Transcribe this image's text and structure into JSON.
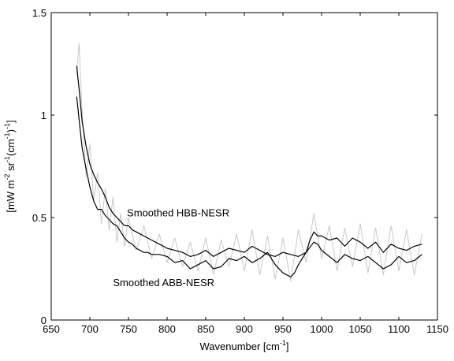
{
  "chart_data": {
    "type": "line",
    "title": "",
    "xlabel": {
      "text": "Wavenumber [cm",
      "sup": "-1",
      "suffix": "]"
    },
    "ylabel": {
      "parts": [
        "[mW m",
        "-2",
        " sr",
        "-1",
        "(cm",
        "-1",
        ")",
        "-1",
        "]"
      ]
    },
    "xlim": [
      650,
      1150
    ],
    "ylim": [
      0,
      1.5
    ],
    "x_ticks": [
      650,
      700,
      750,
      800,
      850,
      900,
      950,
      1000,
      1050,
      1100,
      1150
    ],
    "x_tick_labels": [
      "650",
      "700",
      "750",
      "800",
      "850",
      "900",
      "950",
      "1000",
      "1050",
      "1100",
      "1150"
    ],
    "y_ticks": [
      0,
      0.5,
      1,
      1.5
    ],
    "y_tick_labels": [
      "0",
      "0.5",
      "1",
      "1.5"
    ],
    "grid": false,
    "series": [
      {
        "name": "Smoothed HBB-NESR",
        "color": "#000000",
        "x": [
          683,
          686,
          690,
          695,
          700,
          705,
          710,
          715,
          720,
          725,
          730,
          735,
          740,
          745,
          750,
          755,
          760,
          765,
          770,
          775,
          780,
          785,
          790,
          795,
          800,
          810,
          820,
          830,
          840,
          850,
          860,
          870,
          880,
          890,
          900,
          910,
          920,
          930,
          940,
          950,
          960,
          970,
          980,
          985,
          990,
          995,
          1000,
          1010,
          1020,
          1030,
          1040,
          1050,
          1060,
          1070,
          1080,
          1090,
          1100,
          1110,
          1120,
          1130
        ],
        "y": [
          1.24,
          1.13,
          0.97,
          0.85,
          0.76,
          0.71,
          0.67,
          0.64,
          0.6,
          0.55,
          0.52,
          0.5,
          0.48,
          0.46,
          0.46,
          0.44,
          0.43,
          0.42,
          0.41,
          0.4,
          0.39,
          0.38,
          0.37,
          0.36,
          0.35,
          0.34,
          0.33,
          0.31,
          0.32,
          0.34,
          0.31,
          0.33,
          0.35,
          0.34,
          0.33,
          0.36,
          0.34,
          0.32,
          0.31,
          0.33,
          0.32,
          0.31,
          0.33,
          0.39,
          0.43,
          0.41,
          0.41,
          0.39,
          0.4,
          0.36,
          0.4,
          0.38,
          0.35,
          0.38,
          0.33,
          0.37,
          0.35,
          0.34,
          0.36,
          0.37
        ]
      },
      {
        "name": "Smoothed ABB-NESR",
        "color": "#000000",
        "x": [
          683,
          686,
          690,
          695,
          700,
          705,
          710,
          715,
          720,
          725,
          730,
          735,
          740,
          745,
          750,
          755,
          760,
          765,
          770,
          775,
          780,
          790,
          800,
          810,
          820,
          830,
          840,
          850,
          860,
          870,
          880,
          890,
          900,
          910,
          920,
          930,
          940,
          950,
          960,
          965,
          970,
          980,
          990,
          995,
          1000,
          1010,
          1020,
          1030,
          1040,
          1050,
          1060,
          1070,
          1080,
          1090,
          1100,
          1110,
          1120,
          1130
        ],
        "y": [
          1.09,
          0.98,
          0.84,
          0.74,
          0.65,
          0.58,
          0.54,
          0.54,
          0.51,
          0.49,
          0.47,
          0.46,
          0.43,
          0.4,
          0.38,
          0.37,
          0.35,
          0.34,
          0.33,
          0.33,
          0.32,
          0.32,
          0.31,
          0.28,
          0.29,
          0.25,
          0.27,
          0.29,
          0.25,
          0.26,
          0.3,
          0.29,
          0.31,
          0.28,
          0.3,
          0.33,
          0.27,
          0.23,
          0.21,
          0.23,
          0.27,
          0.33,
          0.38,
          0.37,
          0.34,
          0.31,
          0.28,
          0.32,
          0.3,
          0.29,
          0.31,
          0.28,
          0.25,
          0.27,
          0.31,
          0.28,
          0.29,
          0.32
        ]
      },
      {
        "name": "",
        "color": "#c8c8c8",
        "x": [
          683,
          686,
          690,
          695,
          700,
          705,
          710,
          715,
          720,
          725,
          730,
          735,
          740,
          745,
          750,
          760,
          770,
          780,
          790,
          800,
          810,
          820,
          830,
          840,
          850,
          860,
          870,
          880,
          890,
          900,
          910,
          920,
          930,
          940,
          950,
          960,
          970,
          980,
          990,
          1000,
          1010,
          1020,
          1030,
          1040,
          1050,
          1060,
          1070,
          1080,
          1090,
          1100,
          1110,
          1120,
          1130
        ],
        "y": [
          1.2,
          1.35,
          1.02,
          0.7,
          0.86,
          0.58,
          0.72,
          0.47,
          0.64,
          0.44,
          0.6,
          0.38,
          0.52,
          0.36,
          0.5,
          0.34,
          0.46,
          0.3,
          0.42,
          0.28,
          0.4,
          0.26,
          0.38,
          0.24,
          0.4,
          0.22,
          0.39,
          0.26,
          0.42,
          0.24,
          0.44,
          0.22,
          0.41,
          0.2,
          0.4,
          0.19,
          0.44,
          0.28,
          0.52,
          0.3,
          0.46,
          0.24,
          0.45,
          0.26,
          0.47,
          0.23,
          0.45,
          0.22,
          0.46,
          0.24,
          0.44,
          0.22,
          0.42
        ]
      }
    ],
    "annotations": [
      {
        "text": "Smoothed HBB-NESR",
        "x": 748,
        "y": 0.505
      },
      {
        "text": "Smoothed ABB-NESR",
        "x": 730,
        "y": 0.165
      }
    ]
  }
}
